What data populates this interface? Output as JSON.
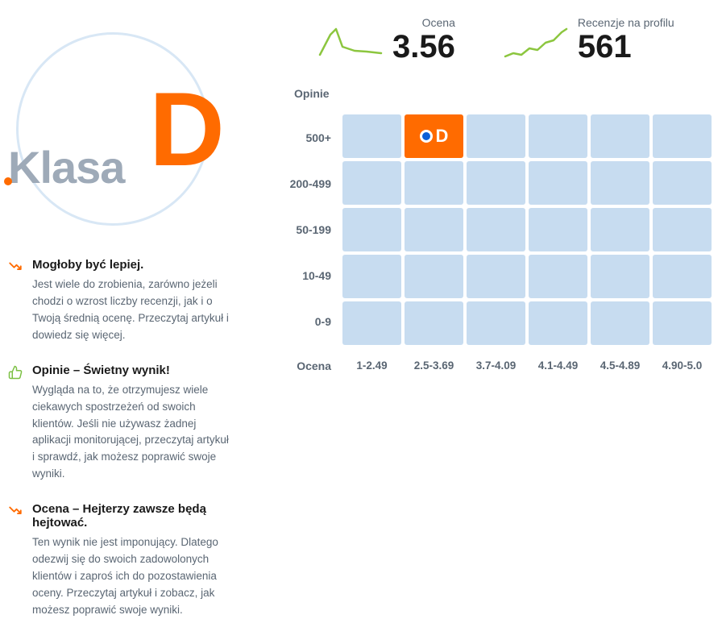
{
  "klasa": {
    "label": "Klasa",
    "grade": "D",
    "grade_color": "#ff6b00",
    "label_color": "#9eaab8",
    "circle_color": "#d8e7f5"
  },
  "insights": [
    {
      "icon": "trend-down",
      "icon_color": "#ff6b00",
      "title": "Mogłoby być lepiej.",
      "desc": "Jest wiele do zrobienia, zarówno jeżeli chodzi o wzrost liczby recenzji, jak i o Twoją średnią ocenę. Przeczytaj artykuł i dowiedz się więcej."
    },
    {
      "icon": "thumb-up",
      "icon_color": "#7bc043",
      "title": "Opinie – Świetny wynik!",
      "desc": "Wygląda na to, że otrzymujesz wiele ciekawych spostrzeżeń od swoich klientów. Jeśli nie używasz żadnej aplikacji monitorującej, przeczytaj artykuł i sprawdź, jak możesz poprawić swoje wyniki."
    },
    {
      "icon": "trend-down",
      "icon_color": "#ff6b00",
      "title": "Ocena – Hejterzy zawsze będą hejtować.",
      "desc": "Ten wynik nie jest imponujący. Dlatego odezwij się do swoich zadowolonych klientów i zaproś ich do pozostawienia oceny. Przeczytaj artykuł i zobacz, jak możesz poprawić swoje wyniki."
    }
  ],
  "stats": {
    "rating": {
      "label": "Ocena",
      "value": "3.56",
      "spark_color": "#8cc63f"
    },
    "reviews": {
      "label": "Recenzje na profilu",
      "value": "561",
      "spark_color": "#8cc63f"
    }
  },
  "chart": {
    "y_title": "Opinie",
    "x_title": "Ocena",
    "y_labels": [
      "500+",
      "200-499",
      "50-199",
      "10-49",
      "0-9"
    ],
    "x_labels": [
      "1-2.49",
      "2.5-3.69",
      "3.7-4.09",
      "4.1-4.49",
      "4.5-4.89",
      "4.90-5.0"
    ],
    "cell_color": "#c7dcf0",
    "active_color": "#ff6b00",
    "marker_dot_color": "#0b5ed7",
    "marker_letter": "D",
    "active_row": 0,
    "active_col": 1
  }
}
